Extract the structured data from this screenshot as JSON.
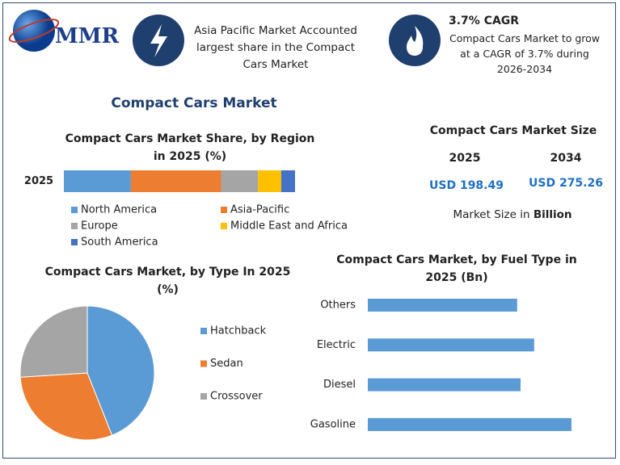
{
  "header": {
    "logo": "MMR",
    "highlight": "Asia Pacific Market Accounted largest share in the Compact Cars Market",
    "cagr_title": "3.7% CAGR",
    "cagr_text": "Compact Cars Market to grow at a CAGR of 3.7% during 2026-2034"
  },
  "title": "Compact Cars Market",
  "market_size": {
    "title": "Compact Cars Market Size",
    "years": [
      "2025",
      "2034"
    ],
    "values": [
      "USD 198.49",
      "USD 275.26"
    ],
    "note": "Market Size in",
    "unit": "Billion"
  },
  "chart_data": [
    {
      "type": "stacked_bar",
      "title": "Compact Cars Market Share, by Region in 2025 (%)",
      "categories": [
        "2025"
      ],
      "series": [
        {
          "name": "North America",
          "color": "#5b9bd5",
          "values": [
            29
          ]
        },
        {
          "name": "Asia-Pacific",
          "color": "#ed7d31",
          "values": [
            39
          ]
        },
        {
          "name": "Europe",
          "color": "#a5a5a5",
          "values": [
            16
          ]
        },
        {
          "name": "Middle East and Africa",
          "color": "#ffc000",
          "values": [
            10
          ]
        },
        {
          "name": "South America",
          "color": "#4472c4",
          "values": [
            6
          ]
        }
      ]
    },
    {
      "type": "pie",
      "title": "Compact Cars Market, by Type In 2025 (%)",
      "categories": [
        "Hatchback",
        "Sedan",
        "Crossover"
      ],
      "values": [
        44,
        30,
        26
      ],
      "colors": [
        "#5b9bd5",
        "#ed7d31",
        "#a5a5a5"
      ]
    },
    {
      "type": "hbar",
      "title": "Compact Cars Market, by Fuel Type in 2025 (Bn)",
      "categories": [
        "Others",
        "Electric",
        "Diesel",
        "Gasoline"
      ],
      "values": [
        44,
        49,
        45,
        60
      ],
      "color": "#5b9bd5"
    }
  ]
}
